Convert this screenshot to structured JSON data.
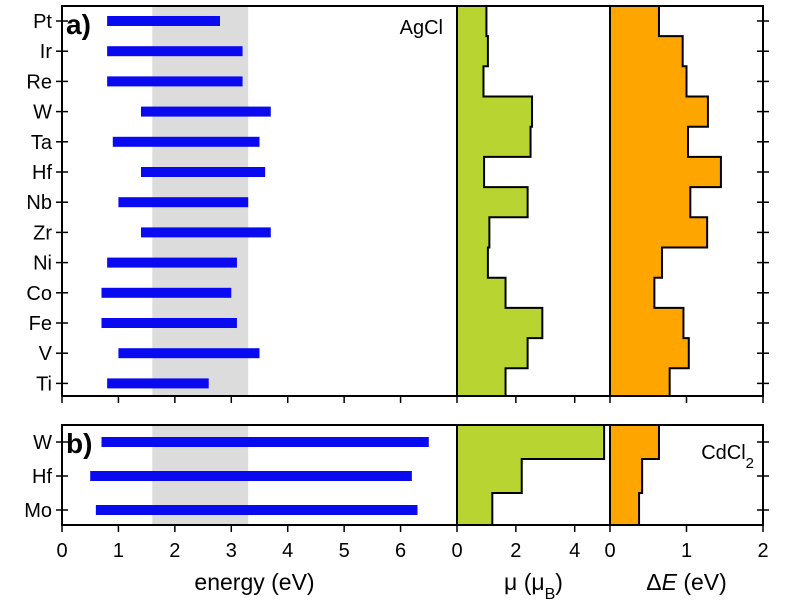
{
  "chart_data": {
    "type": "bar",
    "energy_axis": {
      "label": "energy (eV)",
      "xlim": [
        0,
        7
      ],
      "ticks": [
        0,
        1,
        2,
        3,
        4,
        5,
        6
      ],
      "shaded_band": [
        1.6,
        3.3
      ]
    },
    "mu_axis": {
      "label_main": "μ (μ",
      "label_sub": "B",
      "label_end": ")",
      "xlim": [
        0,
        5.2
      ],
      "ticks": [
        0,
        2,
        4
      ]
    },
    "de_axis": {
      "label_italic": "E",
      "label_prefix": "Δ",
      "label_end": " (eV)",
      "xlim": [
        0,
        2
      ],
      "ticks": [
        0,
        1,
        2
      ]
    },
    "panels": [
      {
        "label": "a)",
        "material": "AgCl",
        "material_sub": "",
        "categories": [
          "Pt",
          "Ir",
          "Re",
          "W",
          "Ta",
          "Hf",
          "Nb",
          "Zr",
          "Ni",
          "Co",
          "Fe",
          "V",
          "Ti"
        ],
        "energy_ranges": [
          [
            0.8,
            2.8
          ],
          [
            0.8,
            3.2
          ],
          [
            0.8,
            3.2
          ],
          [
            1.4,
            3.7
          ],
          [
            0.9,
            3.5
          ],
          [
            1.4,
            3.6
          ],
          [
            1.0,
            3.3
          ],
          [
            1.4,
            3.7
          ],
          [
            0.8,
            3.1
          ],
          [
            0.7,
            3.0
          ],
          [
            0.7,
            3.1
          ],
          [
            1.0,
            3.5
          ],
          [
            0.8,
            2.6
          ]
        ],
        "mu_values": [
          1.0,
          1.05,
          0.9,
          2.55,
          2.5,
          0.92,
          2.4,
          1.1,
          1.05,
          1.65,
          2.9,
          2.4,
          1.65
        ],
        "de_values": [
          0.64,
          0.95,
          1.0,
          1.28,
          1.02,
          1.45,
          1.05,
          1.27,
          0.68,
          0.58,
          0.96,
          1.03,
          0.78
        ]
      },
      {
        "label": "b)",
        "material": "CdCl",
        "material_sub": "2",
        "categories": [
          "W",
          "Hf",
          "Mo"
        ],
        "energy_ranges": [
          [
            0.7,
            6.5
          ],
          [
            0.5,
            6.2
          ],
          [
            0.6,
            6.3
          ]
        ],
        "mu_values": [
          5.0,
          2.2,
          1.2
        ],
        "de_values": [
          0.64,
          0.42,
          0.38
        ]
      }
    ],
    "colors": {
      "energy_bar": "#0a0af0",
      "band": "#dcdcdc",
      "mu_fill": "#b8d430",
      "de_fill": "#ffa500"
    }
  }
}
